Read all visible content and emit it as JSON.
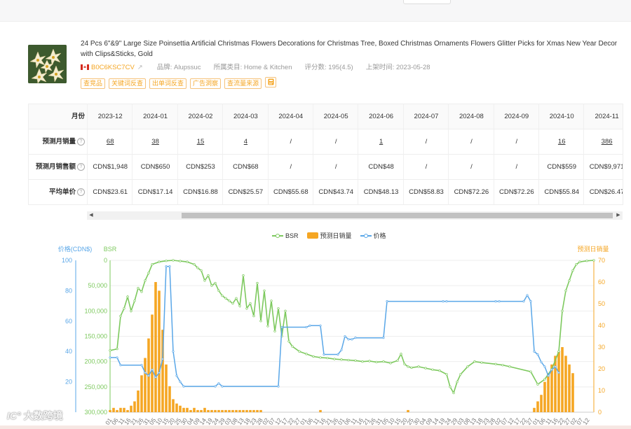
{
  "product": {
    "title": "24 Pcs 6\"&9\" Large Size Poinsettia Artificial Christmas Flowers Decorations for Christmas Tree, Boxed Christmas Ornaments Flowers Glitter Picks for Xmas New Year Decor with Clips&Sticks, Gold",
    "asin": "B0C6KSC7CV",
    "brand": "品牌: Alupssuc",
    "category": "所属类目: Home & Kitchen",
    "rating": "评分数: 195(4.5)",
    "launch": "上架时间: 2023-05-28",
    "tags": [
      "查竞品",
      "关键词反查",
      "出单词反查",
      "广告洞察",
      "查流量来源"
    ],
    "flag_icon": "canada-flag-icon",
    "thumbnail_icon": "poinsettia-flower-thumbnail"
  },
  "table": {
    "label_month": "月份",
    "months": [
      "2023-12",
      "2024-01",
      "2024-02",
      "2024-03",
      "2024-04",
      "2024-05",
      "2024-06",
      "2024-07",
      "2024-08",
      "2024-09",
      "2024-10",
      "2024-11"
    ],
    "rows": [
      {
        "label": "预测月销量",
        "values": [
          "68",
          "38",
          "15",
          "4",
          "/",
          "/",
          "1",
          "/",
          "/",
          "/",
          "16",
          "386"
        ]
      },
      {
        "label": "预测月销售额",
        "values": [
          "CDN$1,948",
          "CDN$650",
          "CDN$253",
          "CDN$68",
          "/",
          "/",
          "CDN$48",
          "/",
          "/",
          "/",
          "CDN$559",
          "CDN$9,971"
        ]
      },
      {
        "label": "平均单价",
        "values": [
          "CDN$23.61",
          "CDN$17.14",
          "CDN$16.88",
          "CDN$25.57",
          "CDN$55.68",
          "CDN$43.74",
          "CDN$48.13",
          "CDN$58.83",
          "CDN$72.26",
          "CDN$72.26",
          "CDN$55.84",
          "CDN$26.47"
        ]
      }
    ],
    "help_icon": "question-circle-icon"
  },
  "scrollbar": {
    "left_arrow": "◀",
    "right_arrow": "▶"
  },
  "chart_data": {
    "type": "line",
    "legend": [
      "BSR",
      "预测日销量",
      "价格"
    ],
    "axes": {
      "price": {
        "label": "价格(CDN$)",
        "ticks": [
          "100",
          "80",
          "60",
          "40",
          "20"
        ],
        "range": [
          0,
          100
        ],
        "color": "#5aa7e8"
      },
      "bsr": {
        "label": "BSR",
        "ticks": [
          "0",
          "50,000",
          "100,000",
          "150,000",
          "200,000",
          "250,000",
          "300,000"
        ],
        "range": [
          0,
          300000
        ],
        "inverted": true,
        "color": "#7dc95e"
      },
      "sales": {
        "label": "预测日销量",
        "ticks": [
          "70",
          "60",
          "50",
          "40",
          "30",
          "20",
          "10",
          "0"
        ],
        "range": [
          0,
          70
        ],
        "color": "#f5a623"
      }
    },
    "x_tick_labels": [
      "01",
      "06",
      "11",
      "16",
      "21",
      "26",
      "31",
      "05",
      "10",
      "15",
      "20",
      "25",
      "30",
      "04",
      "09",
      "14",
      "19",
      "24",
      "29",
      "03",
      "08",
      "13",
      "18",
      "23",
      "28",
      "02",
      "07",
      "12",
      "17",
      "22",
      "27",
      "01",
      "06",
      "11",
      "16",
      "21",
      "26",
      "01",
      "06",
      "11",
      "16",
      "21",
      "26",
      "31",
      "05",
      "10",
      "15",
      "20",
      "25",
      "30",
      "04",
      "09",
      "14",
      "19",
      "24",
      "29",
      "03",
      "08",
      "13",
      "18",
      "23",
      "28",
      "02",
      "07",
      "12",
      "17",
      "22",
      "27",
      "01",
      "06",
      "11",
      "16",
      "22",
      "27",
      "02",
      "07",
      "12"
    ],
    "series": [
      {
        "name": "BSR",
        "axis": "bsr",
        "color": "#7dc95e",
        "points": [
          [
            0,
            178000
          ],
          [
            2,
            175000
          ],
          [
            3,
            110000
          ],
          [
            4,
            95000
          ],
          [
            5,
            72000
          ],
          [
            6,
            100000
          ],
          [
            7,
            80000
          ],
          [
            8,
            55000
          ],
          [
            9,
            62000
          ],
          [
            10,
            40000
          ],
          [
            11,
            25000
          ],
          [
            12,
            8000
          ],
          [
            14,
            3000
          ],
          [
            16,
            1000
          ],
          [
            18,
            0
          ],
          [
            20,
            1500
          ],
          [
            22,
            3000
          ],
          [
            24,
            8000
          ],
          [
            25,
            15000
          ],
          [
            26,
            20000
          ],
          [
            27,
            40000
          ],
          [
            28,
            30000
          ],
          [
            29,
            50000
          ],
          [
            30,
            45000
          ],
          [
            31,
            60000
          ],
          [
            32,
            70000
          ],
          [
            33,
            75000
          ],
          [
            34,
            80000
          ],
          [
            35,
            85000
          ],
          [
            36,
            75000
          ],
          [
            37,
            90000
          ],
          [
            38,
            30000
          ],
          [
            39,
            95000
          ],
          [
            40,
            85000
          ],
          [
            41,
            110000
          ],
          [
            42,
            45000
          ],
          [
            43,
            120000
          ],
          [
            44,
            60000
          ],
          [
            45,
            130000
          ],
          [
            46,
            80000
          ],
          [
            47,
            140000
          ],
          [
            48,
            95000
          ],
          [
            49,
            150000
          ],
          [
            50,
            100000
          ],
          [
            51,
            160000
          ],
          [
            52,
            170000
          ],
          [
            54,
            180000
          ],
          [
            56,
            185000
          ],
          [
            58,
            190000
          ],
          [
            60,
            192000
          ],
          [
            62,
            193000
          ],
          [
            64,
            195000
          ],
          [
            66,
            196000
          ],
          [
            68,
            197000
          ],
          [
            70,
            198000
          ],
          [
            72,
            200000
          ],
          [
            74,
            199000
          ],
          [
            76,
            201000
          ],
          [
            78,
            200000
          ],
          [
            80,
            203000
          ],
          [
            82,
            198000
          ],
          [
            83,
            185000
          ],
          [
            84,
            205000
          ],
          [
            85,
            210000
          ],
          [
            86,
            212000
          ],
          [
            88,
            210000
          ],
          [
            90,
            213000
          ],
          [
            92,
            216000
          ],
          [
            94,
            218000
          ],
          [
            96,
            225000
          ],
          [
            97,
            250000
          ],
          [
            98,
            262000
          ],
          [
            99,
            240000
          ],
          [
            100,
            225000
          ],
          [
            102,
            210000
          ],
          [
            104,
            200000
          ],
          [
            106,
            202000
          ],
          [
            110,
            205000
          ],
          [
            112,
            207000
          ],
          [
            114,
            210000
          ],
          [
            120,
            220000
          ],
          [
            122,
            245000
          ],
          [
            124,
            235000
          ],
          [
            126,
            215000
          ],
          [
            128,
            180000
          ],
          [
            129,
            100000
          ],
          [
            130,
            60000
          ],
          [
            131,
            40000
          ],
          [
            132,
            20000
          ],
          [
            133,
            8000
          ],
          [
            134,
            3000
          ],
          [
            136,
            1000
          ],
          [
            138,
            0
          ]
        ]
      },
      {
        "name": "价格",
        "axis": "price",
        "color": "#5aa7e8",
        "points": [
          [
            0,
            36
          ],
          [
            2,
            36
          ],
          [
            3,
            31
          ],
          [
            9,
            31
          ],
          [
            10,
            26
          ],
          [
            11,
            24
          ],
          [
            12,
            28
          ],
          [
            13,
            23
          ],
          [
            14,
            26
          ],
          [
            15,
            35
          ],
          [
            16,
            96
          ],
          [
            17,
            96
          ],
          [
            18,
            40
          ],
          [
            19,
            24
          ],
          [
            20,
            20
          ],
          [
            21,
            17
          ],
          [
            30,
            17
          ],
          [
            31,
            19
          ],
          [
            32,
            17
          ],
          [
            48,
            17
          ],
          [
            49,
            56
          ],
          [
            56,
            56
          ],
          [
            57,
            57
          ],
          [
            60,
            57
          ],
          [
            61,
            38
          ],
          [
            65,
            38
          ],
          [
            66,
            41
          ],
          [
            67,
            50
          ],
          [
            68,
            48
          ],
          [
            69,
            48
          ],
          [
            70,
            49
          ],
          [
            78,
            49
          ],
          [
            79,
            73
          ],
          [
            95,
            73
          ],
          [
            96,
            73
          ],
          [
            110,
            73
          ],
          [
            111,
            73
          ],
          [
            118,
            73
          ],
          [
            119,
            77
          ],
          [
            120,
            73
          ],
          [
            121,
            40
          ],
          [
            122,
            38
          ],
          [
            123,
            33
          ],
          [
            124,
            30
          ],
          [
            125,
            24
          ],
          [
            126,
            28
          ],
          [
            127,
            30
          ],
          [
            128,
            26
          ]
        ]
      },
      {
        "name": "预测日销量",
        "axis": "sales",
        "color": "#f5a623",
        "type": "bar",
        "points": [
          [
            0,
            1
          ],
          [
            1,
            2
          ],
          [
            2,
            1
          ],
          [
            3,
            2
          ],
          [
            4,
            2
          ],
          [
            5,
            1
          ],
          [
            6,
            3
          ],
          [
            7,
            5
          ],
          [
            8,
            10
          ],
          [
            9,
            17
          ],
          [
            10,
            25
          ],
          [
            11,
            34
          ],
          [
            12,
            45
          ],
          [
            13,
            60
          ],
          [
            14,
            56
          ],
          [
            15,
            38
          ],
          [
            16,
            22
          ],
          [
            17,
            12
          ],
          [
            18,
            6
          ],
          [
            19,
            4
          ],
          [
            20,
            3
          ],
          [
            21,
            2
          ],
          [
            22,
            2
          ],
          [
            23,
            1
          ],
          [
            24,
            2
          ],
          [
            25,
            1
          ],
          [
            26,
            1
          ],
          [
            27,
            2
          ],
          [
            28,
            1
          ],
          [
            29,
            1
          ],
          [
            30,
            1
          ],
          [
            31,
            1
          ],
          [
            32,
            1
          ],
          [
            33,
            1
          ],
          [
            34,
            1
          ],
          [
            35,
            1
          ],
          [
            36,
            1
          ],
          [
            37,
            1
          ],
          [
            38,
            1
          ],
          [
            39,
            1
          ],
          [
            40,
            1
          ],
          [
            41,
            1
          ],
          [
            42,
            1
          ],
          [
            43,
            1
          ],
          [
            44,
            0
          ],
          [
            45,
            0
          ],
          [
            46,
            0
          ],
          [
            47,
            0
          ],
          [
            48,
            0
          ],
          [
            60,
            1
          ],
          [
            85,
            1
          ],
          [
            120,
            0
          ],
          [
            121,
            2
          ],
          [
            122,
            5
          ],
          [
            123,
            8
          ],
          [
            124,
            14
          ],
          [
            125,
            18
          ],
          [
            126,
            22
          ],
          [
            127,
            26
          ],
          [
            128,
            28
          ],
          [
            129,
            30
          ],
          [
            130,
            26
          ],
          [
            131,
            22
          ],
          [
            132,
            18
          ]
        ]
      }
    ]
  },
  "watermark": "大数跨境"
}
